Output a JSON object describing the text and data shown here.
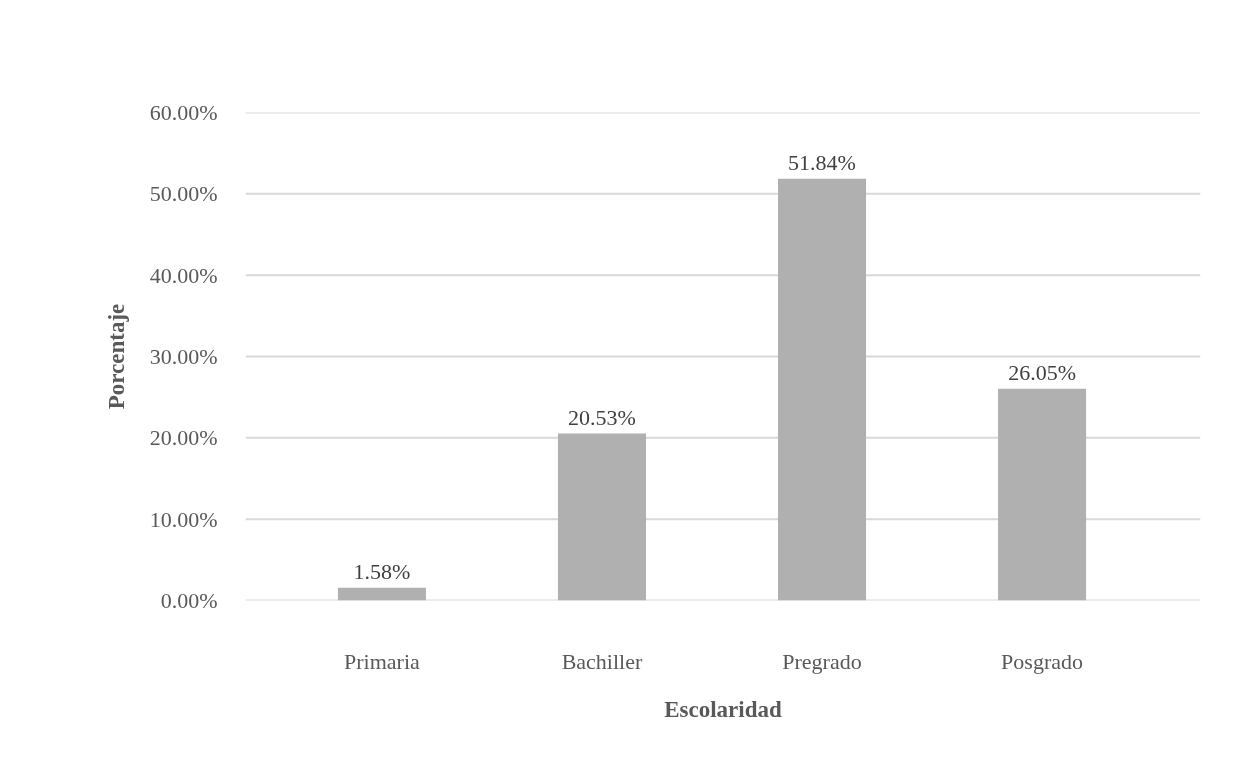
{
  "chart_data": {
    "type": "bar",
    "xlabel": "Escolaridad",
    "ylabel": "Porcentaje",
    "categories": [
      "Primaria",
      "Bachiller",
      "Pregrado",
      "Posgrado"
    ],
    "values": [
      1.58,
      20.53,
      51.84,
      26.05
    ],
    "color": "#b0b0b0",
    "value_labels": [
      "1.58%",
      "20.53%",
      "51.84%",
      "26.05%"
    ],
    "ylim": [
      0,
      60
    ],
    "yticks": [
      {
        "value": 0,
        "label": "0.00%"
      },
      {
        "value": 10,
        "label": "10.00%"
      },
      {
        "value": 20,
        "label": "20.00%"
      },
      {
        "value": 30,
        "label": "30.00%"
      },
      {
        "value": 40,
        "label": "40.00%"
      },
      {
        "value": 50,
        "label": "50.00%"
      },
      {
        "value": 60,
        "label": "60.00%"
      }
    ],
    "grid": "y"
  }
}
